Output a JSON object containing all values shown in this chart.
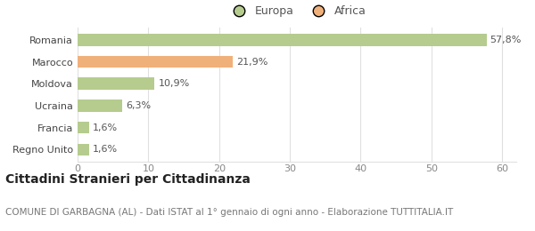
{
  "categories": [
    "Romania",
    "Marocco",
    "Moldova",
    "Ucraina",
    "Francia",
    "Regno Unito"
  ],
  "values": [
    57.8,
    21.9,
    10.9,
    6.3,
    1.6,
    1.6
  ],
  "labels": [
    "57,8%",
    "21,9%",
    "10,9%",
    "6,3%",
    "1,6%",
    "1,6%"
  ],
  "colors": [
    "#b5cc8e",
    "#f0b07a",
    "#b5cc8e",
    "#b5cc8e",
    "#b5cc8e",
    "#b5cc8e"
  ],
  "legend": [
    {
      "label": "Europa",
      "color": "#b5cc8e"
    },
    {
      "label": "Africa",
      "color": "#f0b07a"
    }
  ],
  "xlim": [
    0,
    62
  ],
  "xticks": [
    0,
    10,
    20,
    30,
    40,
    50,
    60
  ],
  "title": "Cittadini Stranieri per Cittadinanza",
  "subtitle": "COMUNE DI GARBAGNA (AL) - Dati ISTAT al 1° gennaio di ogni anno - Elaborazione TUTTITALIA.IT",
  "title_fontsize": 10,
  "subtitle_fontsize": 7.5,
  "label_fontsize": 8,
  "tick_fontsize": 8,
  "legend_fontsize": 9,
  "background_color": "#ffffff",
  "grid_color": "#e0e0e0",
  "bar_height": 0.55
}
